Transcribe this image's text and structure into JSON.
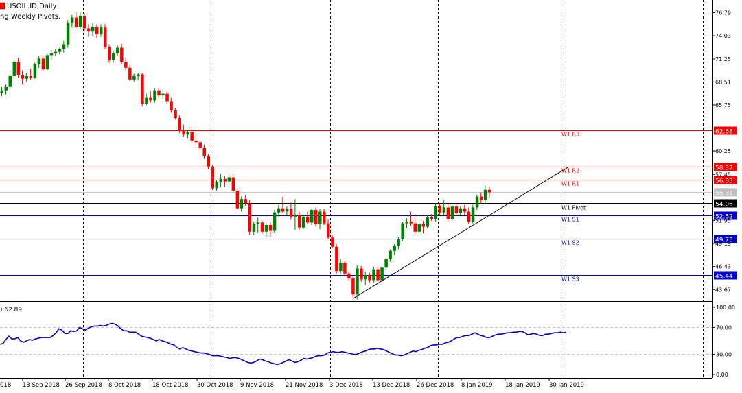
{
  "header": {
    "symbol": "USOIL.ID,Daily",
    "indicator": "ng Weekly Pivots.",
    "sub_label": ") 62.89"
  },
  "colors": {
    "bull": "#008000",
    "bear": "#ff0000",
    "resistance": "#ff0000",
    "support": "#0000cc",
    "pivot": "#000000",
    "rsi": "#0000cc",
    "grid_vline": "#000000",
    "guide": "#c0c0c0"
  },
  "chart_data": [
    {
      "type": "candlestick",
      "title": "USOIL.ID,Daily",
      "ylim": [
        42.3,
        78.3
      ],
      "y_ticks": [
        "76.79",
        "74.03",
        "71.25",
        "68.51",
        "65.75",
        "60.25",
        "57.45",
        "51.95",
        "49.19",
        "46.43",
        "43.67"
      ],
      "x_labels": [
        "13 Sep 2018",
        "26 Sep 2018",
        "8 Oct 2018",
        "18 Oct 2018",
        "30 Oct 2018",
        "9 Nov 2018",
        "21 Nov 2018",
        "3 Dec 2018",
        "13 Dec 2018",
        "26 Dec 2018",
        "8 Jan 2019",
        "18 Jan 2019",
        "30 Jan 2019"
      ],
      "x_labels_left": [
        "018"
      ],
      "candles": [
        {
          "o": 67.2,
          "h": 67.9,
          "l": 66.8,
          "c": 67.5
        },
        {
          "o": 67.5,
          "h": 68.2,
          "l": 67.0,
          "c": 67.9
        },
        {
          "o": 67.9,
          "h": 69.4,
          "l": 67.6,
          "c": 69.2
        },
        {
          "o": 69.2,
          "h": 71.1,
          "l": 69.0,
          "c": 70.9
        },
        {
          "o": 70.9,
          "h": 71.4,
          "l": 69.0,
          "c": 69.3
        },
        {
          "o": 69.3,
          "h": 69.9,
          "l": 68.2,
          "c": 68.9
        },
        {
          "o": 68.9,
          "h": 69.6,
          "l": 68.5,
          "c": 69.2
        },
        {
          "o": 69.2,
          "h": 70.1,
          "l": 68.8,
          "c": 69.0
        },
        {
          "o": 69.0,
          "h": 70.8,
          "l": 68.9,
          "c": 70.6
        },
        {
          "o": 70.6,
          "h": 71.6,
          "l": 70.2,
          "c": 71.3
        },
        {
          "o": 71.3,
          "h": 71.6,
          "l": 69.8,
          "c": 70.0
        },
        {
          "o": 70.0,
          "h": 71.9,
          "l": 69.9,
          "c": 71.7
        },
        {
          "o": 71.7,
          "h": 72.3,
          "l": 71.2,
          "c": 71.9
        },
        {
          "o": 71.9,
          "h": 72.4,
          "l": 71.6,
          "c": 72.1
        },
        {
          "o": 72.1,
          "h": 72.6,
          "l": 71.8,
          "c": 72.4
        },
        {
          "o": 72.4,
          "h": 73.4,
          "l": 72.0,
          "c": 73.0
        },
        {
          "o": 73.0,
          "h": 75.9,
          "l": 72.6,
          "c": 75.5
        },
        {
          "o": 75.5,
          "h": 76.5,
          "l": 75.0,
          "c": 76.2
        },
        {
          "o": 76.2,
          "h": 76.9,
          "l": 74.9,
          "c": 75.1
        },
        {
          "o": 75.1,
          "h": 76.8,
          "l": 74.8,
          "c": 76.4
        },
        {
          "o": 76.4,
          "h": 76.7,
          "l": 74.6,
          "c": 74.9
        },
        {
          "o": 74.9,
          "h": 75.4,
          "l": 73.9,
          "c": 74.6
        },
        {
          "o": 74.6,
          "h": 75.5,
          "l": 74.0,
          "c": 75.1
        },
        {
          "o": 75.1,
          "h": 75.4,
          "l": 73.8,
          "c": 74.2
        },
        {
          "o": 74.2,
          "h": 75.4,
          "l": 73.9,
          "c": 75.0
        },
        {
          "o": 75.0,
          "h": 75.4,
          "l": 72.4,
          "c": 72.7
        },
        {
          "o": 72.7,
          "h": 73.0,
          "l": 70.8,
          "c": 71.1
        },
        {
          "o": 71.1,
          "h": 72.2,
          "l": 70.8,
          "c": 71.9
        },
        {
          "o": 71.9,
          "h": 72.9,
          "l": 71.6,
          "c": 72.6
        },
        {
          "o": 72.6,
          "h": 73.1,
          "l": 70.6,
          "c": 70.9
        },
        {
          "o": 70.9,
          "h": 71.4,
          "l": 69.9,
          "c": 70.2
        },
        {
          "o": 70.2,
          "h": 70.5,
          "l": 68.6,
          "c": 68.8
        },
        {
          "o": 68.8,
          "h": 69.5,
          "l": 68.5,
          "c": 69.2
        },
        {
          "o": 69.2,
          "h": 69.6,
          "l": 68.7,
          "c": 69.4
        },
        {
          "o": 69.4,
          "h": 69.6,
          "l": 65.6,
          "c": 65.9
        },
        {
          "o": 65.9,
          "h": 67.1,
          "l": 65.7,
          "c": 66.6
        },
        {
          "o": 66.6,
          "h": 67.4,
          "l": 66.0,
          "c": 66.3
        },
        {
          "o": 66.3,
          "h": 67.8,
          "l": 66.0,
          "c": 67.5
        },
        {
          "o": 67.5,
          "h": 67.8,
          "l": 66.6,
          "c": 66.9
        },
        {
          "o": 66.9,
          "h": 67.6,
          "l": 66.4,
          "c": 67.1
        },
        {
          "o": 67.1,
          "h": 67.4,
          "l": 65.9,
          "c": 66.2
        },
        {
          "o": 66.2,
          "h": 66.6,
          "l": 64.8,
          "c": 65.1
        },
        {
          "o": 65.1,
          "h": 65.4,
          "l": 64.0,
          "c": 64.2
        },
        {
          "o": 64.2,
          "h": 64.5,
          "l": 62.4,
          "c": 62.7
        },
        {
          "o": 62.7,
          "h": 63.4,
          "l": 61.9,
          "c": 62.2
        },
        {
          "o": 62.2,
          "h": 62.8,
          "l": 61.8,
          "c": 62.5
        },
        {
          "o": 62.5,
          "h": 62.9,
          "l": 61.2,
          "c": 61.5
        },
        {
          "o": 61.5,
          "h": 62.9,
          "l": 61.1,
          "c": 61.3
        },
        {
          "o": 61.3,
          "h": 61.6,
          "l": 60.4,
          "c": 60.6
        },
        {
          "o": 60.6,
          "h": 61.0,
          "l": 59.3,
          "c": 59.6
        },
        {
          "o": 59.6,
          "h": 59.9,
          "l": 58.1,
          "c": 58.4
        },
        {
          "o": 58.4,
          "h": 58.6,
          "l": 55.6,
          "c": 55.8
        },
        {
          "o": 55.8,
          "h": 56.8,
          "l": 55.5,
          "c": 56.5
        },
        {
          "o": 56.5,
          "h": 57.5,
          "l": 55.9,
          "c": 56.9
        },
        {
          "o": 56.9,
          "h": 57.3,
          "l": 56.0,
          "c": 56.6
        },
        {
          "o": 56.6,
          "h": 57.7,
          "l": 56.1,
          "c": 57.1
        },
        {
          "o": 57.1,
          "h": 57.6,
          "l": 55.3,
          "c": 55.5
        },
        {
          "o": 55.5,
          "h": 55.8,
          "l": 53.2,
          "c": 53.4
        },
        {
          "o": 53.4,
          "h": 54.8,
          "l": 53.0,
          "c": 54.5
        },
        {
          "o": 54.5,
          "h": 55.0,
          "l": 53.7,
          "c": 54.0
        },
        {
          "o": 54.0,
          "h": 54.4,
          "l": 50.2,
          "c": 50.6
        },
        {
          "o": 50.6,
          "h": 51.8,
          "l": 50.2,
          "c": 51.5
        },
        {
          "o": 51.5,
          "h": 52.3,
          "l": 50.5,
          "c": 51.7
        },
        {
          "o": 51.7,
          "h": 52.0,
          "l": 50.3,
          "c": 50.6
        },
        {
          "o": 50.6,
          "h": 51.6,
          "l": 50.0,
          "c": 51.4
        },
        {
          "o": 51.4,
          "h": 51.7,
          "l": 50.0,
          "c": 50.7
        },
        {
          "o": 50.7,
          "h": 53.2,
          "l": 50.5,
          "c": 52.9
        },
        {
          "o": 52.9,
          "h": 53.8,
          "l": 52.4,
          "c": 53.4
        },
        {
          "o": 53.4,
          "h": 54.8,
          "l": 52.8,
          "c": 53.0
        },
        {
          "o": 53.0,
          "h": 53.6,
          "l": 52.5,
          "c": 53.3
        },
        {
          "o": 53.3,
          "h": 54.1,
          "l": 52.0,
          "c": 52.4
        },
        {
          "o": 52.4,
          "h": 54.5,
          "l": 50.8,
          "c": 52.6
        },
        {
          "o": 52.6,
          "h": 53.0,
          "l": 50.8,
          "c": 51.1
        },
        {
          "o": 51.1,
          "h": 52.6,
          "l": 50.9,
          "c": 52.4
        },
        {
          "o": 52.4,
          "h": 53.0,
          "l": 51.5,
          "c": 51.7
        },
        {
          "o": 51.7,
          "h": 53.4,
          "l": 51.4,
          "c": 53.2
        },
        {
          "o": 53.2,
          "h": 53.5,
          "l": 51.2,
          "c": 51.5
        },
        {
          "o": 51.5,
          "h": 53.3,
          "l": 50.9,
          "c": 53.0
        },
        {
          "o": 53.0,
          "h": 53.3,
          "l": 51.4,
          "c": 51.6
        },
        {
          "o": 51.6,
          "h": 52.1,
          "l": 49.7,
          "c": 49.9
        },
        {
          "o": 49.9,
          "h": 50.2,
          "l": 48.6,
          "c": 48.8
        },
        {
          "o": 48.8,
          "h": 49.1,
          "l": 45.6,
          "c": 45.9
        },
        {
          "o": 45.9,
          "h": 47.3,
          "l": 45.6,
          "c": 46.9
        },
        {
          "o": 46.9,
          "h": 47.1,
          "l": 45.3,
          "c": 45.6
        },
        {
          "o": 45.6,
          "h": 45.9,
          "l": 44.7,
          "c": 45.0
        },
        {
          "o": 45.0,
          "h": 45.3,
          "l": 42.8,
          "c": 43.1
        },
        {
          "o": 43.1,
          "h": 46.6,
          "l": 42.5,
          "c": 46.2
        },
        {
          "o": 46.2,
          "h": 46.5,
          "l": 44.6,
          "c": 44.9
        },
        {
          "o": 44.9,
          "h": 45.8,
          "l": 44.2,
          "c": 45.4
        },
        {
          "o": 45.4,
          "h": 45.7,
          "l": 44.5,
          "c": 44.8
        },
        {
          "o": 44.8,
          "h": 46.4,
          "l": 44.5,
          "c": 46.1
        },
        {
          "o": 46.1,
          "h": 46.3,
          "l": 44.6,
          "c": 44.8
        },
        {
          "o": 44.8,
          "h": 46.5,
          "l": 44.6,
          "c": 46.3
        },
        {
          "o": 46.3,
          "h": 47.6,
          "l": 46.0,
          "c": 47.3
        },
        {
          "o": 47.3,
          "h": 48.5,
          "l": 47.0,
          "c": 48.3
        },
        {
          "o": 48.3,
          "h": 49.1,
          "l": 47.8,
          "c": 48.9
        },
        {
          "o": 48.9,
          "h": 50.0,
          "l": 48.5,
          "c": 49.7
        },
        {
          "o": 49.7,
          "h": 51.8,
          "l": 49.5,
          "c": 51.6
        },
        {
          "o": 51.6,
          "h": 52.2,
          "l": 51.0,
          "c": 51.8
        },
        {
          "o": 51.8,
          "h": 53.0,
          "l": 51.3,
          "c": 51.6
        },
        {
          "o": 51.6,
          "h": 52.3,
          "l": 50.3,
          "c": 50.6
        },
        {
          "o": 50.6,
          "h": 51.8,
          "l": 50.3,
          "c": 51.5
        },
        {
          "o": 51.5,
          "h": 51.9,
          "l": 50.4,
          "c": 51.2
        },
        {
          "o": 51.2,
          "h": 52.6,
          "l": 51.0,
          "c": 52.3
        },
        {
          "o": 52.3,
          "h": 52.7,
          "l": 51.9,
          "c": 52.1
        },
        {
          "o": 52.1,
          "h": 54.0,
          "l": 51.8,
          "c": 53.7
        },
        {
          "o": 53.7,
          "h": 54.0,
          "l": 52.6,
          "c": 52.9
        },
        {
          "o": 52.9,
          "h": 54.4,
          "l": 52.5,
          "c": 53.5
        },
        {
          "o": 53.5,
          "h": 54.0,
          "l": 51.8,
          "c": 52.1
        },
        {
          "o": 52.1,
          "h": 53.8,
          "l": 51.9,
          "c": 53.6
        },
        {
          "o": 53.6,
          "h": 53.9,
          "l": 52.5,
          "c": 52.8
        },
        {
          "o": 52.8,
          "h": 53.6,
          "l": 52.6,
          "c": 53.4
        },
        {
          "o": 53.4,
          "h": 53.8,
          "l": 52.6,
          "c": 53.0
        },
        {
          "o": 53.0,
          "h": 53.5,
          "l": 51.5,
          "c": 51.8
        },
        {
          "o": 51.8,
          "h": 53.8,
          "l": 51.6,
          "c": 53.5
        },
        {
          "o": 53.5,
          "h": 55.0,
          "l": 53.2,
          "c": 54.8
        },
        {
          "o": 54.8,
          "h": 55.3,
          "l": 53.9,
          "c": 54.4
        },
        {
          "o": 54.4,
          "h": 56.1,
          "l": 53.9,
          "c": 55.6
        },
        {
          "o": 55.6,
          "h": 56.0,
          "l": 54.6,
          "c": 55.3
        }
      ],
      "levels": [
        {
          "name": "W1 R3",
          "value": 62.68,
          "label": "62.68",
          "kind": "resistance"
        },
        {
          "name": "W1 R2",
          "value": 58.37,
          "label": "58.37",
          "kind": "resistance"
        },
        {
          "name": "W1 R1",
          "value": 56.83,
          "label": "56.83",
          "kind": "resistance"
        },
        {
          "name": "W1 Pivot",
          "value": 54.06,
          "label": "54.06",
          "kind": "pivot"
        },
        {
          "name": "W1 S1",
          "value": 52.52,
          "label": "52.52",
          "kind": "support"
        },
        {
          "name": "W1 S2",
          "value": 49.75,
          "label": "49.75",
          "kind": "support"
        },
        {
          "name": "W1 S3",
          "value": 45.44,
          "label": "45.44",
          "kind": "support"
        }
      ],
      "current_price": {
        "value": 55.31,
        "label": "55.31"
      },
      "trendline": {
        "from": {
          "index": 85,
          "value": 42.6
        },
        "to": {
          "index": 137,
          "value": 58.3
        }
      }
    },
    {
      "type": "line",
      "title": ") 62.89",
      "ylim": [
        0,
        100
      ],
      "y_ticks": [
        "100.00",
        "70.00",
        "30.00",
        "0.00"
      ],
      "dashed_levels": [
        70,
        30
      ],
      "series": [
        {
          "values": [
            45,
            46,
            52,
            57,
            53,
            53,
            55,
            50,
            48,
            50,
            52,
            51,
            53,
            54,
            55,
            55,
            55,
            55,
            58,
            62,
            68,
            66,
            61,
            61,
            65,
            64,
            65,
            70,
            68,
            66,
            69,
            71,
            72,
            72,
            73,
            72,
            73,
            75,
            76,
            75,
            72,
            68,
            65,
            65,
            63,
            63,
            63,
            60,
            57,
            56,
            55,
            54,
            52,
            50,
            52,
            50,
            49,
            47,
            45,
            44,
            40,
            38,
            40,
            38,
            36,
            35,
            34,
            33,
            32,
            32,
            31,
            30,
            28,
            28,
            28,
            27,
            26,
            25,
            24,
            25,
            25,
            24,
            22,
            20,
            18,
            17,
            18,
            20,
            23,
            22,
            20,
            19,
            17,
            16,
            15,
            16,
            18,
            20,
            22,
            20,
            18,
            19,
            21,
            24,
            23,
            24,
            25,
            27,
            28,
            28,
            29,
            32,
            33,
            34,
            33,
            33,
            34,
            33,
            32,
            31,
            30,
            30,
            32,
            34,
            35,
            37,
            38,
            38,
            39,
            38,
            37,
            35,
            33,
            31,
            29,
            29,
            28,
            29,
            31,
            33,
            35,
            34,
            36,
            37,
            39,
            40,
            43,
            44,
            44,
            45,
            45,
            47,
            48,
            50,
            53,
            55,
            55,
            57,
            58,
            58,
            60,
            62,
            60,
            58,
            57,
            55,
            55,
            57,
            59,
            60,
            60,
            61,
            62,
            62,
            63,
            63,
            64,
            64,
            62,
            59,
            60,
            61,
            60,
            58,
            58,
            60,
            60,
            61,
            62,
            62,
            63,
            62,
            63
          ]
        }
      ],
      "series_overrides_note": ""
    }
  ]
}
